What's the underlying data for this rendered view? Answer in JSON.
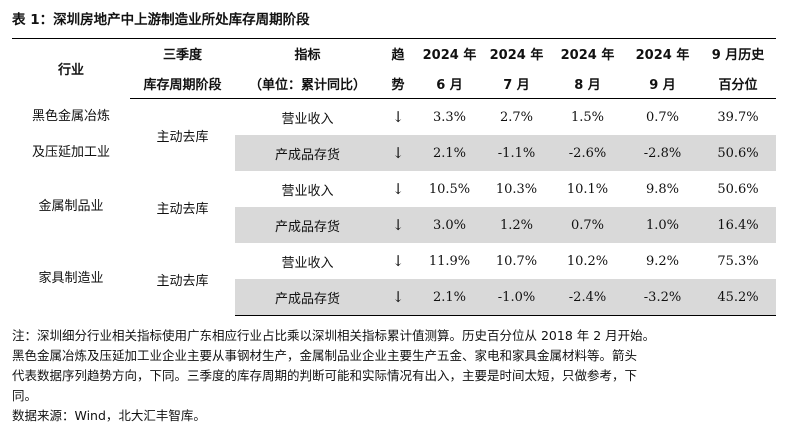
{
  "title": "表 1：深圳房地产中上游制造业所处库存周期阶段",
  "header": {
    "industry": "行业",
    "stage_line1": "三季度",
    "stage_line2": "库存周期阶段",
    "metric_line1": "指标",
    "metric_line2": "（单位：累计同比）",
    "trend_line1": "趋",
    "trend_line2": "势",
    "months": [
      {
        "line1": "2024 年",
        "line2": "6 月"
      },
      {
        "line1": "2024 年",
        "line2": "7 月"
      },
      {
        "line1": "2024 年",
        "line2": "8 月"
      },
      {
        "line1": "2024 年",
        "line2": "9 月"
      }
    ],
    "hist_line1": "9 月历史",
    "hist_line2": "百分位"
  },
  "groups": [
    {
      "industry_line1": "黑色金属冶炼",
      "industry_line2": "及压延加工业",
      "stage": "主动去库",
      "rows": [
        {
          "metric": "营业收入",
          "trend": "↓",
          "values": [
            "3.3%",
            "2.7%",
            "1.5%",
            "0.7%"
          ],
          "hist": "39.7%"
        },
        {
          "metric": "产成品存货",
          "trend": "↓",
          "values": [
            "2.1%",
            "-1.1%",
            "-2.6%",
            "-2.8%"
          ],
          "hist": "50.6%"
        }
      ]
    },
    {
      "industry_line1": "金属制品业",
      "industry_line2": "",
      "stage": "主动去库",
      "rows": [
        {
          "metric": "营业收入",
          "trend": "↓",
          "values": [
            "10.5%",
            "10.3%",
            "10.1%",
            "9.8%"
          ],
          "hist": "50.6%"
        },
        {
          "metric": "产成品存货",
          "trend": "↓",
          "values": [
            "3.0%",
            "1.2%",
            "0.7%",
            "1.0%"
          ],
          "hist": "16.4%"
        }
      ]
    },
    {
      "industry_line1": "家具制造业",
      "industry_line2": "",
      "stage": "主动去库",
      "rows": [
        {
          "metric": "营业收入",
          "trend": "↓",
          "values": [
            "11.9%",
            "10.7%",
            "10.2%",
            "9.2%"
          ],
          "hist": "75.3%"
        },
        {
          "metric": "产成品存货",
          "trend": "↓",
          "values": [
            "2.1%",
            "-1.0%",
            "-2.4%",
            "-3.2%"
          ],
          "hist": "45.2%"
        }
      ]
    }
  ],
  "note": {
    "line1": "注：深圳细分行业相关指标使用广东相应行业占比乘以深圳相关指标累计值测算。历史百分位从 2018 年 2 月开始。",
    "line2": "黑色金属冶炼及压延加工业企业主要从事钢材生产，金属制品业企业主要生产五金、家电和家具金属材料等。箭头",
    "line3": "代表数据序列趋势方向，下同。三季度的库存周期的判断可能和实际情况有出入，主要是时间太短，只做参考，下",
    "line4": "同。",
    "source": "数据来源：Wind，北大汇丰智库。"
  }
}
